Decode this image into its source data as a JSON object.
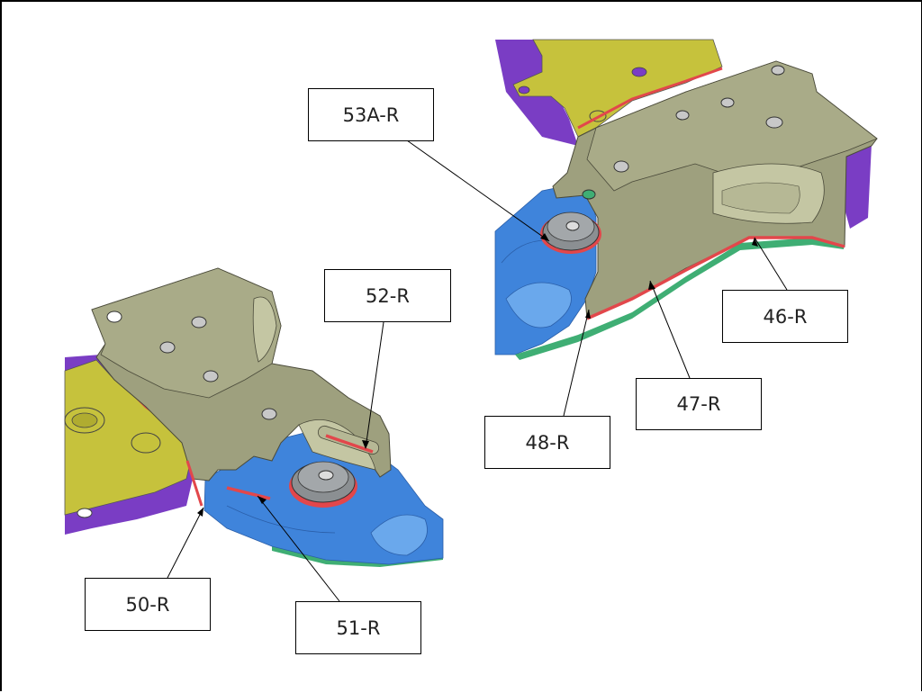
{
  "callouts": {
    "c53a": "53A-R",
    "c52": "52-R",
    "c46": "46-R",
    "c47": "47-R",
    "c48": "48-R",
    "c50": "50-R",
    "c51": "51-R"
  },
  "colors": {
    "bracket": "#9ea07e",
    "bracket_light": "#c4c6a3",
    "base_blue": "#3f84db",
    "base_blue_light": "#6aa8ec",
    "yellow": "#c6c23c",
    "purple": "#7a3dc4",
    "green": "#3fae74",
    "seal_red": "#e2474b",
    "bushing": "#8b8f92"
  }
}
